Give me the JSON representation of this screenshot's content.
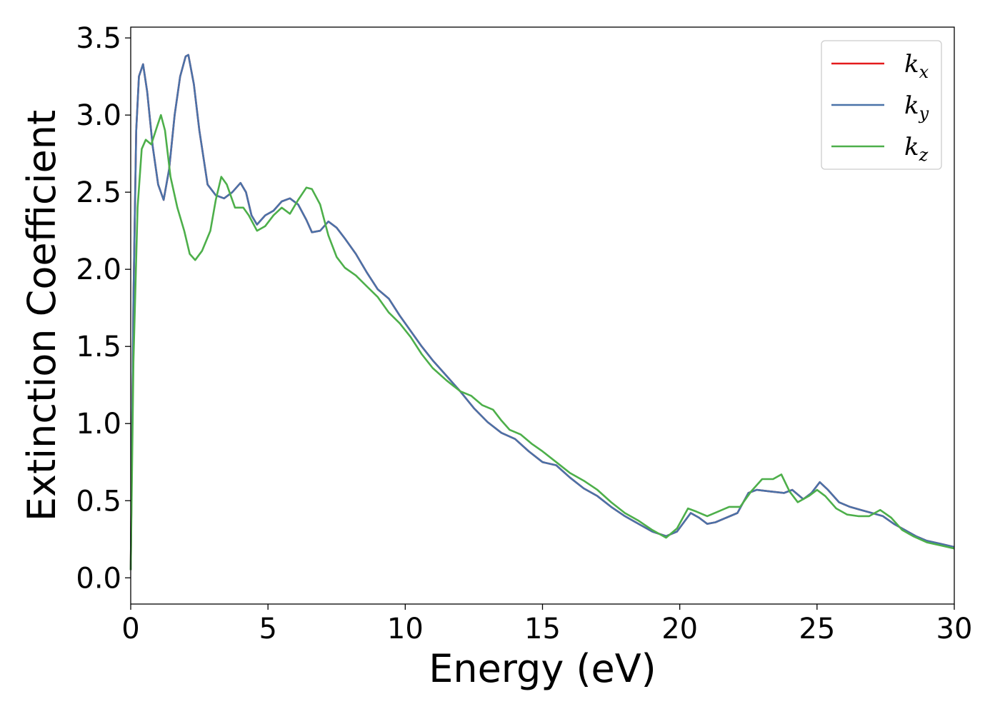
{
  "chart_data": {
    "type": "line",
    "title": "",
    "xlabel": "Energy (eV)",
    "ylabel": "Extinction Coefficient",
    "xlim": [
      0,
      30
    ],
    "ylim": [
      -0.17,
      3.57
    ],
    "xticks": [
      0,
      5,
      10,
      15,
      20,
      25,
      30
    ],
    "xtick_labels": [
      "0",
      "5",
      "10",
      "15",
      "20",
      "25",
      "30"
    ],
    "yticks": [
      0.0,
      0.5,
      1.0,
      1.5,
      2.0,
      2.5,
      3.0,
      3.5
    ],
    "ytick_labels": [
      "0.0",
      "0.5",
      "1.0",
      "1.5",
      "2.0",
      "2.5",
      "3.0",
      "3.5"
    ],
    "grid": false,
    "legend_position": "top-right",
    "series": [
      {
        "name": "k_x",
        "legend_main": "k",
        "legend_sub": "x",
        "color": "#e41a1c",
        "points": [
          [
            0,
            0.05
          ],
          [
            0.1,
            1.8
          ],
          [
            0.2,
            2.9
          ],
          [
            0.3,
            3.25
          ],
          [
            0.45,
            3.33
          ],
          [
            0.6,
            3.15
          ],
          [
            0.8,
            2.8
          ],
          [
            1.0,
            2.55
          ],
          [
            1.2,
            2.45
          ],
          [
            1.4,
            2.65
          ],
          [
            1.6,
            3.0
          ],
          [
            1.8,
            3.25
          ],
          [
            2.0,
            3.38
          ],
          [
            2.1,
            3.39
          ],
          [
            2.3,
            3.2
          ],
          [
            2.5,
            2.9
          ],
          [
            2.8,
            2.55
          ],
          [
            3.1,
            2.48
          ],
          [
            3.4,
            2.46
          ],
          [
            3.7,
            2.5
          ],
          [
            4.0,
            2.56
          ],
          [
            4.2,
            2.5
          ],
          [
            4.4,
            2.35
          ],
          [
            4.6,
            2.29
          ],
          [
            4.9,
            2.35
          ],
          [
            5.2,
            2.38
          ],
          [
            5.5,
            2.44
          ],
          [
            5.8,
            2.46
          ],
          [
            6.1,
            2.42
          ],
          [
            6.4,
            2.32
          ],
          [
            6.6,
            2.24
          ],
          [
            6.9,
            2.25
          ],
          [
            7.2,
            2.31
          ],
          [
            7.5,
            2.27
          ],
          [
            7.8,
            2.2
          ],
          [
            8.2,
            2.1
          ],
          [
            8.6,
            1.98
          ],
          [
            9.0,
            1.87
          ],
          [
            9.4,
            1.81
          ],
          [
            9.8,
            1.7
          ],
          [
            10.2,
            1.6
          ],
          [
            10.6,
            1.5
          ],
          [
            11.0,
            1.41
          ],
          [
            11.5,
            1.31
          ],
          [
            12.0,
            1.21
          ],
          [
            12.5,
            1.1
          ],
          [
            13.0,
            1.01
          ],
          [
            13.5,
            0.94
          ],
          [
            14.0,
            0.9
          ],
          [
            14.5,
            0.82
          ],
          [
            15.0,
            0.75
          ],
          [
            15.5,
            0.73
          ],
          [
            16.0,
            0.65
          ],
          [
            16.5,
            0.58
          ],
          [
            17.0,
            0.53
          ],
          [
            17.5,
            0.46
          ],
          [
            18.0,
            0.4
          ],
          [
            18.5,
            0.35
          ],
          [
            19.0,
            0.3
          ],
          [
            19.5,
            0.27
          ],
          [
            19.9,
            0.3
          ],
          [
            20.4,
            0.42
          ],
          [
            20.7,
            0.39
          ],
          [
            21.0,
            0.35
          ],
          [
            21.3,
            0.36
          ],
          [
            21.7,
            0.39
          ],
          [
            22.1,
            0.42
          ],
          [
            22.5,
            0.55
          ],
          [
            22.8,
            0.57
          ],
          [
            23.3,
            0.56
          ],
          [
            23.8,
            0.55
          ],
          [
            24.1,
            0.57
          ],
          [
            24.5,
            0.51
          ],
          [
            24.8,
            0.55
          ],
          [
            25.1,
            0.62
          ],
          [
            25.4,
            0.57
          ],
          [
            25.8,
            0.49
          ],
          [
            26.2,
            0.46
          ],
          [
            26.6,
            0.44
          ],
          [
            27.0,
            0.42
          ],
          [
            27.4,
            0.4
          ],
          [
            27.8,
            0.35
          ],
          [
            28.2,
            0.31
          ],
          [
            28.6,
            0.27
          ],
          [
            29.0,
            0.24
          ],
          [
            29.5,
            0.22
          ],
          [
            30,
            0.2
          ]
        ]
      },
      {
        "name": "k_y",
        "legend_main": "k",
        "legend_sub": "y",
        "color": "#4a72a8",
        "points": [
          [
            0,
            0.05
          ],
          [
            0.1,
            1.8
          ],
          [
            0.2,
            2.9
          ],
          [
            0.3,
            3.25
          ],
          [
            0.45,
            3.33
          ],
          [
            0.6,
            3.15
          ],
          [
            0.8,
            2.8
          ],
          [
            1.0,
            2.55
          ],
          [
            1.2,
            2.45
          ],
          [
            1.4,
            2.65
          ],
          [
            1.6,
            3.0
          ],
          [
            1.8,
            3.25
          ],
          [
            2.0,
            3.38
          ],
          [
            2.1,
            3.39
          ],
          [
            2.3,
            3.2
          ],
          [
            2.5,
            2.9
          ],
          [
            2.8,
            2.55
          ],
          [
            3.1,
            2.48
          ],
          [
            3.4,
            2.46
          ],
          [
            3.7,
            2.5
          ],
          [
            4.0,
            2.56
          ],
          [
            4.2,
            2.5
          ],
          [
            4.4,
            2.35
          ],
          [
            4.6,
            2.29
          ],
          [
            4.9,
            2.35
          ],
          [
            5.2,
            2.38
          ],
          [
            5.5,
            2.44
          ],
          [
            5.8,
            2.46
          ],
          [
            6.1,
            2.42
          ],
          [
            6.4,
            2.32
          ],
          [
            6.6,
            2.24
          ],
          [
            6.9,
            2.25
          ],
          [
            7.2,
            2.31
          ],
          [
            7.5,
            2.27
          ],
          [
            7.8,
            2.2
          ],
          [
            8.2,
            2.1
          ],
          [
            8.6,
            1.98
          ],
          [
            9.0,
            1.87
          ],
          [
            9.4,
            1.81
          ],
          [
            9.8,
            1.7
          ],
          [
            10.2,
            1.6
          ],
          [
            10.6,
            1.5
          ],
          [
            11.0,
            1.41
          ],
          [
            11.5,
            1.31
          ],
          [
            12.0,
            1.21
          ],
          [
            12.5,
            1.1
          ],
          [
            13.0,
            1.01
          ],
          [
            13.5,
            0.94
          ],
          [
            14.0,
            0.9
          ],
          [
            14.5,
            0.82
          ],
          [
            15.0,
            0.75
          ],
          [
            15.5,
            0.73
          ],
          [
            16.0,
            0.65
          ],
          [
            16.5,
            0.58
          ],
          [
            17.0,
            0.53
          ],
          [
            17.5,
            0.46
          ],
          [
            18.0,
            0.4
          ],
          [
            18.5,
            0.35
          ],
          [
            19.0,
            0.3
          ],
          [
            19.5,
            0.27
          ],
          [
            19.9,
            0.3
          ],
          [
            20.4,
            0.42
          ],
          [
            20.7,
            0.39
          ],
          [
            21.0,
            0.35
          ],
          [
            21.3,
            0.36
          ],
          [
            21.7,
            0.39
          ],
          [
            22.1,
            0.42
          ],
          [
            22.5,
            0.55
          ],
          [
            22.8,
            0.57
          ],
          [
            23.3,
            0.56
          ],
          [
            23.8,
            0.55
          ],
          [
            24.1,
            0.57
          ],
          [
            24.5,
            0.51
          ],
          [
            24.8,
            0.55
          ],
          [
            25.1,
            0.62
          ],
          [
            25.4,
            0.57
          ],
          [
            25.8,
            0.49
          ],
          [
            26.2,
            0.46
          ],
          [
            26.6,
            0.44
          ],
          [
            27.0,
            0.42
          ],
          [
            27.4,
            0.4
          ],
          [
            27.8,
            0.35
          ],
          [
            28.2,
            0.31
          ],
          [
            28.6,
            0.27
          ],
          [
            29.0,
            0.24
          ],
          [
            29.5,
            0.22
          ],
          [
            30,
            0.2
          ]
        ]
      },
      {
        "name": "k_z",
        "legend_main": "k",
        "legend_sub": "z",
        "color": "#4daf4a",
        "points": [
          [
            0,
            0.05
          ],
          [
            0.1,
            1.4
          ],
          [
            0.25,
            2.4
          ],
          [
            0.4,
            2.78
          ],
          [
            0.55,
            2.84
          ],
          [
            0.75,
            2.81
          ],
          [
            0.95,
            2.92
          ],
          [
            1.1,
            3.0
          ],
          [
            1.25,
            2.9
          ],
          [
            1.45,
            2.6
          ],
          [
            1.7,
            2.4
          ],
          [
            1.95,
            2.25
          ],
          [
            2.15,
            2.1
          ],
          [
            2.35,
            2.06
          ],
          [
            2.6,
            2.12
          ],
          [
            2.9,
            2.25
          ],
          [
            3.1,
            2.45
          ],
          [
            3.3,
            2.6
          ],
          [
            3.5,
            2.55
          ],
          [
            3.8,
            2.4
          ],
          [
            4.1,
            2.4
          ],
          [
            4.3,
            2.35
          ],
          [
            4.6,
            2.25
          ],
          [
            4.9,
            2.28
          ],
          [
            5.2,
            2.35
          ],
          [
            5.5,
            2.4
          ],
          [
            5.8,
            2.36
          ],
          [
            6.1,
            2.45
          ],
          [
            6.4,
            2.53
          ],
          [
            6.6,
            2.52
          ],
          [
            6.9,
            2.42
          ],
          [
            7.2,
            2.22
          ],
          [
            7.5,
            2.08
          ],
          [
            7.8,
            2.01
          ],
          [
            8.2,
            1.96
          ],
          [
            8.6,
            1.89
          ],
          [
            9.0,
            1.82
          ],
          [
            9.4,
            1.72
          ],
          [
            9.8,
            1.65
          ],
          [
            10.2,
            1.56
          ],
          [
            10.6,
            1.45
          ],
          [
            11.0,
            1.36
          ],
          [
            11.5,
            1.28
          ],
          [
            12.0,
            1.21
          ],
          [
            12.4,
            1.18
          ],
          [
            12.8,
            1.12
          ],
          [
            13.2,
            1.09
          ],
          [
            13.5,
            1.02
          ],
          [
            13.8,
            0.96
          ],
          [
            14.2,
            0.93
          ],
          [
            14.6,
            0.87
          ],
          [
            15.0,
            0.82
          ],
          [
            15.5,
            0.75
          ],
          [
            16.0,
            0.68
          ],
          [
            16.5,
            0.63
          ],
          [
            17.0,
            0.57
          ],
          [
            17.5,
            0.49
          ],
          [
            18.0,
            0.42
          ],
          [
            18.5,
            0.37
          ],
          [
            19.0,
            0.31
          ],
          [
            19.5,
            0.26
          ],
          [
            19.9,
            0.32
          ],
          [
            20.3,
            0.45
          ],
          [
            20.6,
            0.43
          ],
          [
            21.0,
            0.4
          ],
          [
            21.4,
            0.43
          ],
          [
            21.8,
            0.46
          ],
          [
            22.2,
            0.46
          ],
          [
            22.6,
            0.56
          ],
          [
            23.0,
            0.64
          ],
          [
            23.4,
            0.64
          ],
          [
            23.7,
            0.67
          ],
          [
            24.0,
            0.56
          ],
          [
            24.3,
            0.49
          ],
          [
            24.7,
            0.53
          ],
          [
            25.0,
            0.57
          ],
          [
            25.3,
            0.53
          ],
          [
            25.7,
            0.45
          ],
          [
            26.1,
            0.41
          ],
          [
            26.5,
            0.4
          ],
          [
            26.9,
            0.4
          ],
          [
            27.3,
            0.44
          ],
          [
            27.7,
            0.39
          ],
          [
            28.1,
            0.31
          ],
          [
            28.5,
            0.27
          ],
          [
            29.0,
            0.23
          ],
          [
            29.5,
            0.21
          ],
          [
            30,
            0.19
          ]
        ]
      }
    ]
  }
}
